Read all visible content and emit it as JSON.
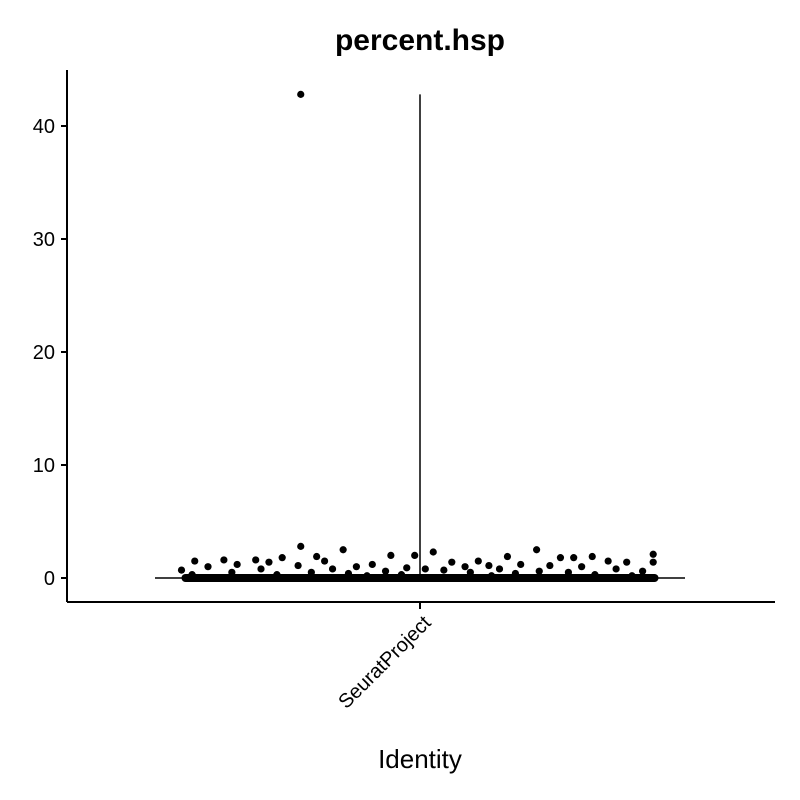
{
  "chart_data": {
    "type": "violin",
    "title": "percent.hsp",
    "xlabel": "Identity",
    "ylabel": "",
    "categories": [
      "SeuratProject"
    ],
    "yticks": [
      0,
      10,
      20,
      30,
      40
    ],
    "ylim": [
      -2.2,
      45
    ],
    "violin": {
      "category": "SeuratProject",
      "min": 0,
      "max": 42.8
    },
    "points": [
      {
        "x_jitter": -0.45,
        "y": 42.8
      },
      {
        "x_jitter": -0.45,
        "y": 2.8
      },
      {
        "x_jitter": -0.29,
        "y": 2.5
      },
      {
        "x_jitter": 0.44,
        "y": 2.5
      },
      {
        "x_jitter": 0.05,
        "y": 2.3
      },
      {
        "x_jitter": 0.88,
        "y": 2.1
      },
      {
        "x_jitter": -0.02,
        "y": 2.0
      },
      {
        "x_jitter": -0.11,
        "y": 2.0
      },
      {
        "x_jitter": -0.39,
        "y": 1.9
      },
      {
        "x_jitter": 0.33,
        "y": 1.9
      },
      {
        "x_jitter": 0.65,
        "y": 1.9
      },
      {
        "x_jitter": -0.52,
        "y": 1.8
      },
      {
        "x_jitter": 0.53,
        "y": 1.8
      },
      {
        "x_jitter": 0.58,
        "y": 1.8
      },
      {
        "x_jitter": -0.62,
        "y": 1.6
      },
      {
        "x_jitter": -0.85,
        "y": 1.5
      },
      {
        "x_jitter": -0.74,
        "y": 1.6
      },
      {
        "x_jitter": -0.57,
        "y": 1.4
      },
      {
        "x_jitter": -0.36,
        "y": 1.5
      },
      {
        "x_jitter": 0.12,
        "y": 1.4
      },
      {
        "x_jitter": 0.22,
        "y": 1.5
      },
      {
        "x_jitter": 0.71,
        "y": 1.5
      },
      {
        "x_jitter": 0.78,
        "y": 1.4
      },
      {
        "x_jitter": 0.88,
        "y": 1.4
      },
      {
        "x_jitter": -0.18,
        "y": 1.2
      },
      {
        "x_jitter": -0.69,
        "y": 1.2
      },
      {
        "x_jitter": 0.26,
        "y": 1.1
      },
      {
        "x_jitter": 0.38,
        "y": 1.2
      },
      {
        "x_jitter": 0.49,
        "y": 1.1
      },
      {
        "x_jitter": -0.46,
        "y": 1.1
      },
      {
        "x_jitter": -0.8,
        "y": 1.0
      },
      {
        "x_jitter": -0.24,
        "y": 1.0
      },
      {
        "x_jitter": 0.17,
        "y": 1.0
      },
      {
        "x_jitter": 0.61,
        "y": 1.0
      },
      {
        "x_jitter": -0.05,
        "y": 0.9
      },
      {
        "x_jitter": 0.02,
        "y": 0.8
      },
      {
        "x_jitter": -0.33,
        "y": 0.8
      },
      {
        "x_jitter": -0.6,
        "y": 0.8
      },
      {
        "x_jitter": 0.3,
        "y": 0.8
      },
      {
        "x_jitter": 0.74,
        "y": 0.8
      },
      {
        "x_jitter": -0.9,
        "y": 0.7
      },
      {
        "x_jitter": -0.13,
        "y": 0.6
      },
      {
        "x_jitter": 0.09,
        "y": 0.7
      },
      {
        "x_jitter": 0.45,
        "y": 0.6
      },
      {
        "x_jitter": 0.84,
        "y": 0.6
      },
      {
        "x_jitter": -0.71,
        "y": 0.5
      },
      {
        "x_jitter": -0.41,
        "y": 0.5
      },
      {
        "x_jitter": 0.19,
        "y": 0.5
      },
      {
        "x_jitter": 0.56,
        "y": 0.5
      },
      {
        "x_jitter": -0.27,
        "y": 0.4
      },
      {
        "x_jitter": 0.36,
        "y": 0.4
      },
      {
        "x_jitter": -0.86,
        "y": 0.3
      },
      {
        "x_jitter": -0.54,
        "y": 0.3
      },
      {
        "x_jitter": -0.07,
        "y": 0.3
      },
      {
        "x_jitter": 0.66,
        "y": 0.3
      },
      {
        "x_jitter": -0.2,
        "y": 0.2
      },
      {
        "x_jitter": 0.27,
        "y": 0.2
      },
      {
        "x_jitter": 0.8,
        "y": 0.2
      }
    ],
    "zero_band": {
      "y": 0,
      "from_jitter": -0.9,
      "to_jitter": 0.9
    }
  }
}
